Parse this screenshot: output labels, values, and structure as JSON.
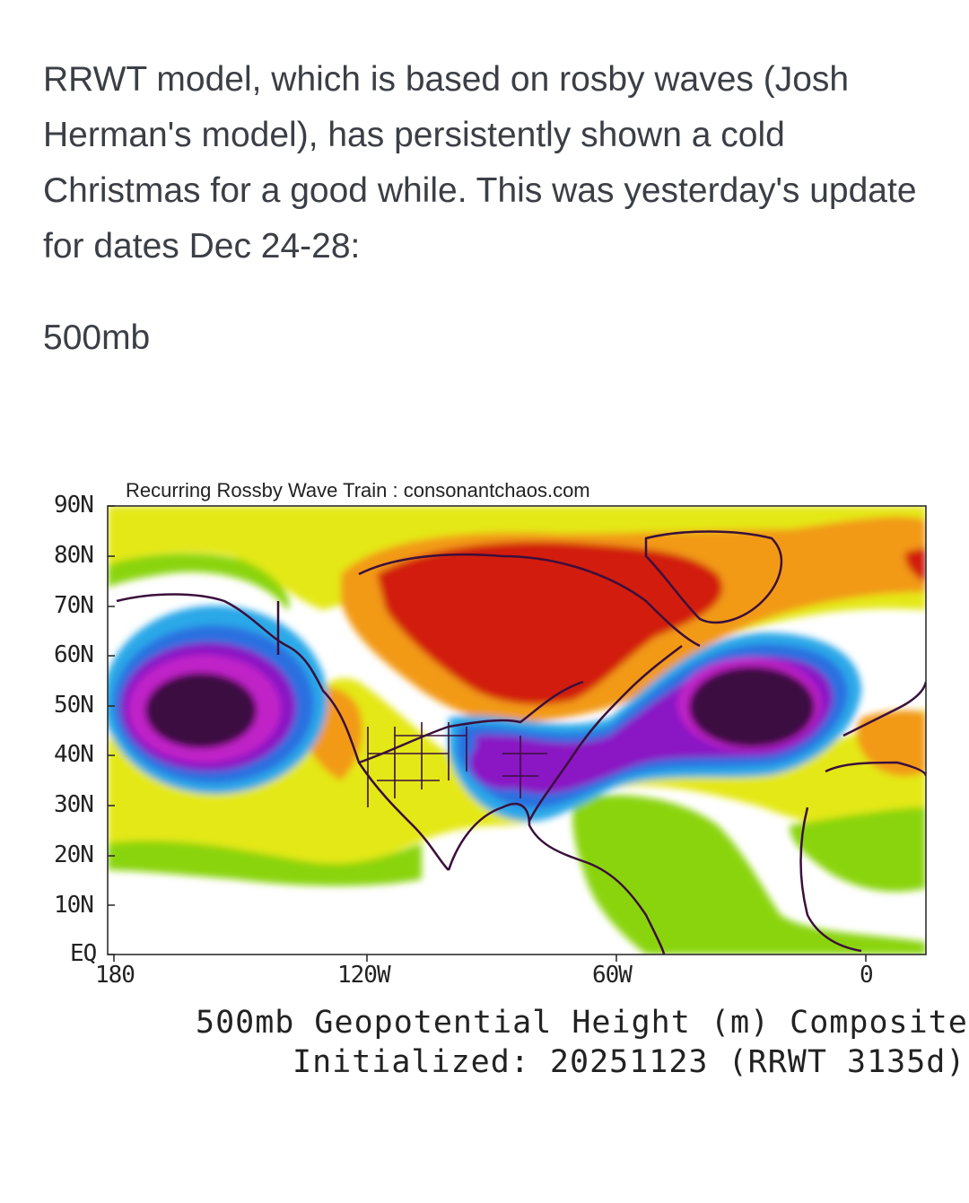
{
  "post": {
    "text": "RRWT model, which is based on rosby waves (Josh Herman's model), has persistently shown a cold Christmas for a good while. This was yesterday's update for dates Dec 24-28:",
    "label": "500mb"
  },
  "map": {
    "title": "Recurring Rossby Wave Train : consonantchaos.com",
    "lat_labels": [
      "90N",
      "80N",
      "70N",
      "60N",
      "50N",
      "40N",
      "30N",
      "20N",
      "10N",
      "EQ"
    ],
    "lon_labels": [
      "180",
      "120W",
      "60W",
      "0"
    ],
    "caption_line1": "500mb Geopotential Height (m) Composite",
    "caption_line2": "Initialized: 20251123 (RRWT 3135d)",
    "colors": {
      "deep_negative": "#3a0a40",
      "negative_purple": "#8a14c4",
      "negative_magenta": "#c020c8",
      "negative_blue": "#2b6fe0",
      "negative_cyan": "#2aa8e8",
      "neutral_white": "#ffffff",
      "positive_green": "#8ad40e",
      "positive_yellow": "#e4e818",
      "positive_orange": "#f29a12",
      "positive_red": "#d21a10",
      "coastline": "#3b0f3c"
    }
  }
}
